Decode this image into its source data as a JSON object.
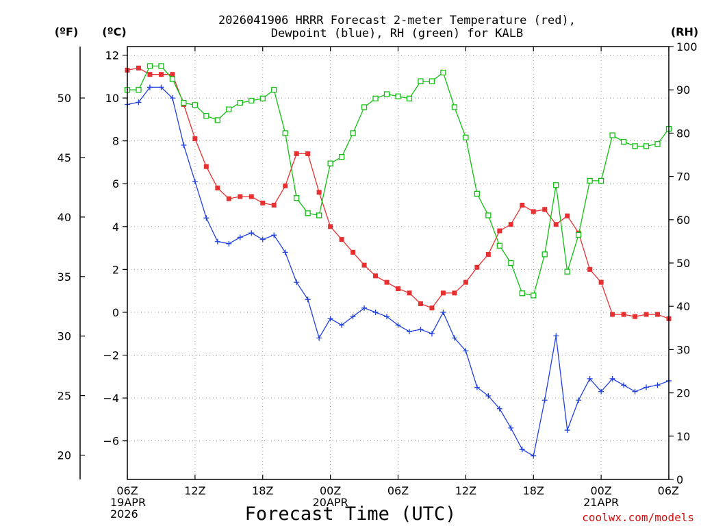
{
  "chart_data": {
    "type": "line",
    "title_lines": [
      "2026041906 HRRR Forecast 2-meter Temperature (red),",
      "Dewpoint (blue), RH (green) for KALB"
    ],
    "xlabel": "Forecast Time (UTC)",
    "credit": "coolwx.com/models",
    "units": {
      "fahrenheit": "(ºF)",
      "celsius": "(ºC)",
      "rh": "(RH)"
    },
    "x_range_hours": [
      0,
      48
    ],
    "ylim_c": [
      -7.8,
      12.4
    ],
    "ylim_rh": [
      0,
      100
    ],
    "x_ticks": [
      {
        "hour": 0,
        "lines": [
          "06Z",
          "19APR",
          "2026"
        ]
      },
      {
        "hour": 6,
        "lines": [
          "12Z"
        ]
      },
      {
        "hour": 12,
        "lines": [
          "18Z"
        ]
      },
      {
        "hour": 18,
        "lines": [
          "00Z",
          "20APR"
        ]
      },
      {
        "hour": 24,
        "lines": [
          "06Z"
        ]
      },
      {
        "hour": 30,
        "lines": [
          "12Z"
        ]
      },
      {
        "hour": 36,
        "lines": [
          "18Z"
        ]
      },
      {
        "hour": 42,
        "lines": [
          "00Z",
          "21APR"
        ]
      },
      {
        "hour": 48,
        "lines": [
          "06Z"
        ]
      }
    ],
    "celsius_ticks": [
      {
        "value": 12,
        "label": "12"
      },
      {
        "value": 10,
        "label": "10"
      },
      {
        "value": 8,
        "label": "8"
      },
      {
        "value": 6,
        "label": "6"
      },
      {
        "value": 4,
        "label": "4"
      },
      {
        "value": 2,
        "label": "2"
      },
      {
        "value": 0,
        "label": "0"
      },
      {
        "value": -2,
        "label": "−2"
      },
      {
        "value": -4,
        "label": "−4"
      },
      {
        "value": -6,
        "label": "−6"
      }
    ],
    "fahrenheit_ticks": [
      {
        "value": 50,
        "label": "50"
      },
      {
        "value": 45,
        "label": "45"
      },
      {
        "value": 40,
        "label": "40"
      },
      {
        "value": 35,
        "label": "35"
      },
      {
        "value": 30,
        "label": "30"
      },
      {
        "value": 25,
        "label": "25"
      },
      {
        "value": 20,
        "label": "20"
      }
    ],
    "rh_ticks": [
      {
        "value": 100,
        "label": "100"
      },
      {
        "value": 90,
        "label": "90"
      },
      {
        "value": 80,
        "label": "80"
      },
      {
        "value": 70,
        "label": "70"
      },
      {
        "value": 60,
        "label": "60"
      },
      {
        "value": 50,
        "label": "50"
      },
      {
        "value": 40,
        "label": "40"
      },
      {
        "value": 30,
        "label": "30"
      },
      {
        "value": 20,
        "label": "20"
      },
      {
        "value": 10,
        "label": "10"
      },
      {
        "value": 0,
        "label": "0"
      }
    ],
    "hours": [
      0,
      1,
      2,
      3,
      4,
      5,
      6,
      7,
      8,
      9,
      10,
      11,
      12,
      13,
      14,
      15,
      16,
      17,
      18,
      19,
      20,
      21,
      22,
      23,
      24,
      25,
      26,
      27,
      28,
      29,
      30,
      31,
      32,
      33,
      34,
      35,
      36,
      37,
      38,
      39,
      40,
      41,
      42,
      43,
      44,
      45,
      46,
      47,
      48
    ],
    "series": [
      {
        "name": "2-meter Temperature",
        "axis": "celsius",
        "color": "#e83030",
        "marker": "filled-square",
        "values": [
          11.3,
          11.4,
          11.1,
          11.1,
          11.1,
          9.7,
          8.1,
          6.8,
          5.8,
          5.3,
          5.4,
          5.4,
          5.1,
          5.0,
          5.9,
          7.4,
          7.4,
          5.6,
          4.0,
          3.4,
          2.8,
          2.2,
          1.7,
          1.4,
          1.1,
          0.9,
          0.4,
          0.2,
          0.9,
          0.9,
          1.4,
          2.1,
          2.7,
          3.8,
          4.1,
          5.0,
          4.7,
          4.8,
          4.1,
          4.5,
          3.7,
          2.0,
          1.4,
          -0.1,
          -0.1,
          -0.2,
          -0.1,
          -0.1,
          -0.3
        ]
      },
      {
        "name": "Dewpoint",
        "axis": "celsius",
        "color": "#2040e0",
        "marker": "plus",
        "values": [
          9.7,
          9.8,
          10.5,
          10.5,
          10.0,
          7.8,
          6.1,
          4.4,
          3.3,
          3.2,
          3.5,
          3.7,
          3.4,
          3.6,
          2.8,
          1.4,
          0.6,
          -1.2,
          -0.3,
          -0.6,
          -0.2,
          0.2,
          0.0,
          -0.2,
          -0.6,
          -0.9,
          -0.8,
          -1.0,
          -0.0,
          -1.2,
          -1.8,
          -3.5,
          -3.9,
          -4.5,
          -5.4,
          -6.4,
          -6.7,
          -4.1,
          -1.1,
          -5.5,
          -4.1,
          -3.1,
          -3.7,
          -3.1,
          -3.4,
          -3.7,
          -3.5,
          -3.4,
          -3.2
        ]
      },
      {
        "name": "RH",
        "axis": "rh",
        "color": "#10c010",
        "marker": "open-square",
        "values": [
          90,
          90,
          95.5,
          95.5,
          92.5,
          87,
          86.5,
          84,
          83,
          85.5,
          87,
          87.5,
          88,
          90,
          80,
          65,
          61.5,
          61,
          73,
          74.5,
          80,
          86,
          88,
          89,
          88.5,
          88,
          92,
          92,
          94,
          86,
          79,
          66,
          61,
          54,
          50,
          43,
          42.5,
          52,
          68,
          48,
          56.5,
          69,
          69,
          79.5,
          78,
          77,
          77,
          77.5,
          81
        ]
      }
    ]
  }
}
